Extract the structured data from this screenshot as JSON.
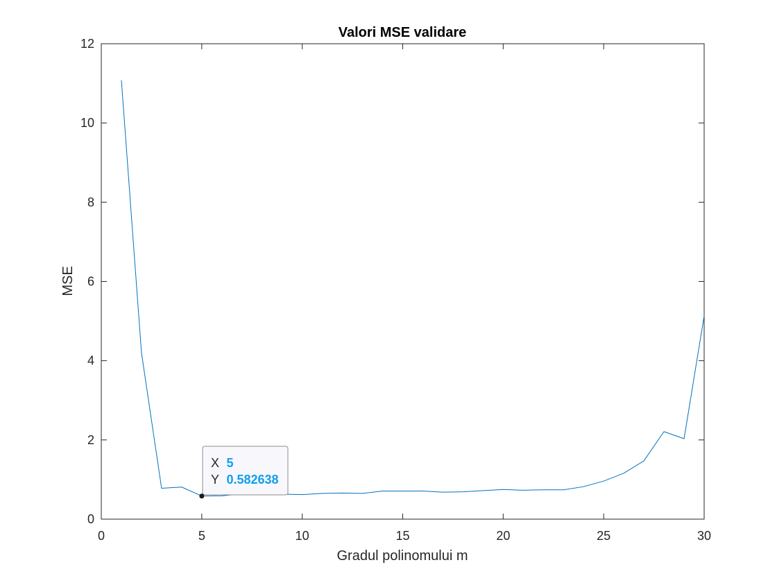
{
  "chart_data": {
    "type": "line",
    "title": "Valori MSE validare",
    "xlabel": "Gradul polinomului m",
    "ylabel": "MSE",
    "xlim": [
      0,
      30
    ],
    "ylim": [
      0,
      12
    ],
    "x_ticks": [
      "0",
      "5",
      "10",
      "15",
      "20",
      "25",
      "30"
    ],
    "y_ticks": [
      "0",
      "2",
      "4",
      "6",
      "8",
      "10",
      "12"
    ],
    "grid": false,
    "series": [
      {
        "color": "#0072bd",
        "x": [
          1,
          2,
          3,
          4,
          5,
          6,
          7,
          8,
          9,
          10,
          11,
          12,
          13,
          14,
          15,
          16,
          17,
          18,
          19,
          20,
          21,
          22,
          23,
          24,
          25,
          26,
          27,
          28,
          29,
          30
        ],
        "y": [
          11.08,
          4.2,
          0.78,
          0.81,
          0.583,
          0.59,
          0.64,
          0.63,
          0.63,
          0.62,
          0.65,
          0.66,
          0.65,
          0.71,
          0.71,
          0.71,
          0.68,
          0.69,
          0.72,
          0.75,
          0.73,
          0.74,
          0.74,
          0.82,
          0.96,
          1.16,
          1.47,
          2.21,
          2.03,
          5.13
        ]
      }
    ],
    "datatip": {
      "x_key": "X",
      "x_value": "5",
      "y_key": "Y",
      "y_value": "0.582638",
      "point": [
        5,
        0.582638
      ]
    }
  }
}
